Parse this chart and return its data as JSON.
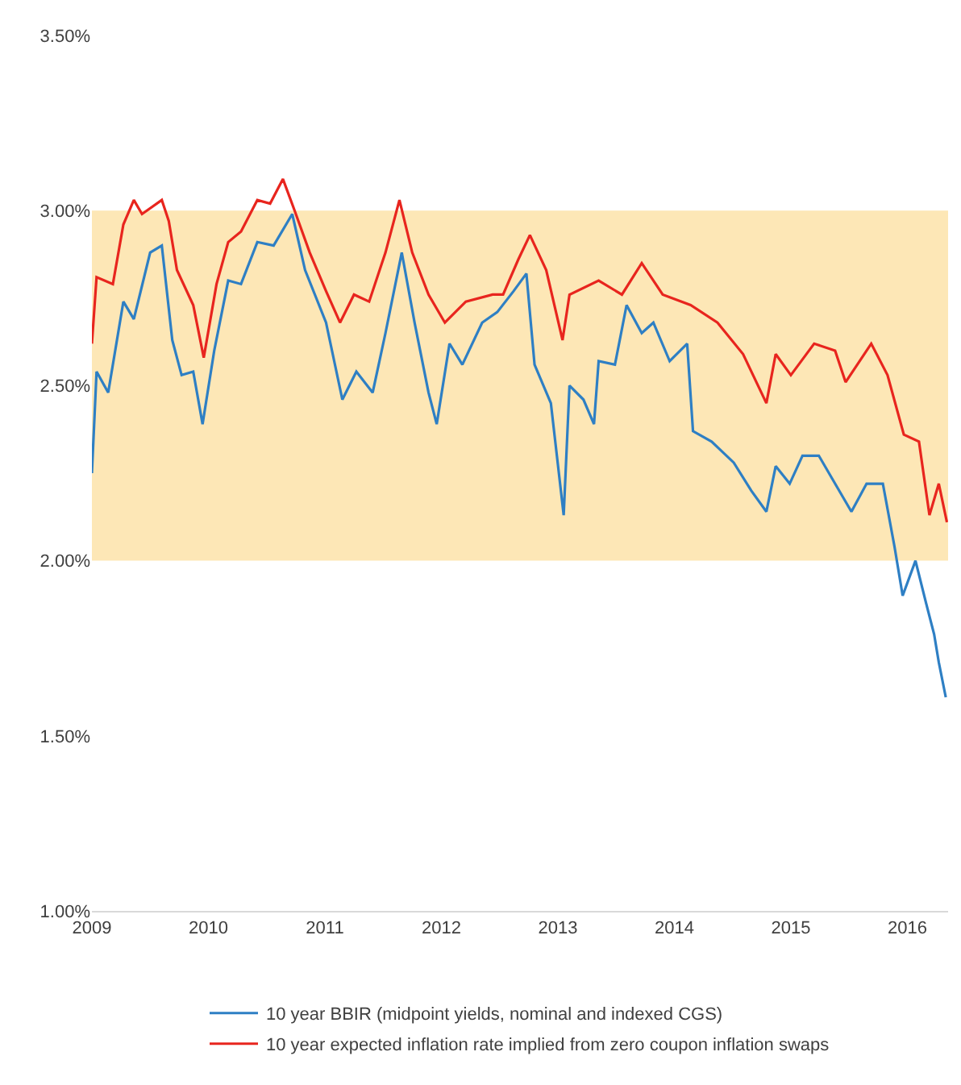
{
  "chart_data": {
    "type": "line",
    "xlim": [
      2009,
      2016.35
    ],
    "xticks": [
      2009,
      2010,
      2011,
      2012,
      2013,
      2014,
      2015,
      2016
    ],
    "ylim": [
      1.0,
      3.5
    ],
    "yticks": [
      {
        "value": 1.0,
        "label": "1.00%"
      },
      {
        "value": 1.5,
        "label": "1.50%"
      },
      {
        "value": 2.0,
        "label": "2.00%"
      },
      {
        "value": 2.5,
        "label": "2.50%"
      },
      {
        "value": 3.0,
        "label": "3.00%"
      },
      {
        "value": 3.5,
        "label": "3.50%"
      }
    ],
    "grid": false,
    "legend": "bottom",
    "marker": "none",
    "line_style": "solid",
    "bands": [
      {
        "axis": "y",
        "from": 2.0,
        "to": 3.0,
        "color": "#fde7b6"
      }
    ],
    "series": [
      {
        "name": "10 year BBIR (midpoint yields, nominal and indexed CGS)",
        "color": "#2e7fc4",
        "x": [
          2009.0,
          2009.04,
          2009.14,
          2009.27,
          2009.36,
          2009.5,
          2009.6,
          2009.69,
          2009.77,
          2009.87,
          2009.95,
          2010.05,
          2010.17,
          2010.28,
          2010.42,
          2010.56,
          2010.72,
          2010.83,
          2011.01,
          2011.15,
          2011.27,
          2011.41,
          2011.52,
          2011.66,
          2011.77,
          2011.89,
          2011.96,
          2012.07,
          2012.18,
          2012.35,
          2012.48,
          2012.62,
          2012.73,
          2012.8,
          2012.94,
          2013.05,
          2013.1,
          2013.22,
          2013.31,
          2013.35,
          2013.49,
          2013.59,
          2013.72,
          2013.82,
          2013.96,
          2014.11,
          2014.16,
          2014.32,
          2014.51,
          2014.66,
          2014.79,
          2014.87,
          2014.99,
          2015.1,
          2015.24,
          2015.38,
          2015.52,
          2015.65,
          2015.79,
          2015.89,
          2015.96,
          2016.07,
          2016.16,
          2016.23,
          2016.27,
          2016.33
        ],
        "values": [
          2.25,
          2.54,
          2.48,
          2.74,
          2.69,
          2.88,
          2.9,
          2.63,
          2.53,
          2.54,
          2.39,
          2.6,
          2.8,
          2.79,
          2.91,
          2.9,
          2.99,
          2.83,
          2.68,
          2.46,
          2.54,
          2.48,
          2.65,
          2.88,
          2.68,
          2.48,
          2.39,
          2.62,
          2.56,
          2.68,
          2.71,
          2.77,
          2.82,
          2.56,
          2.45,
          2.13,
          2.5,
          2.46,
          2.39,
          2.57,
          2.56,
          2.73,
          2.65,
          2.68,
          2.57,
          2.62,
          2.37,
          2.34,
          2.28,
          2.2,
          2.14,
          2.27,
          2.22,
          2.3,
          2.3,
          2.22,
          2.14,
          2.22,
          2.22,
          2.04,
          1.9,
          2.0,
          1.88,
          1.79,
          1.71,
          1.61
        ]
      },
      {
        "name": "10 year expected inflation rate implied from zero coupon inflation swaps",
        "color": "#e8251e",
        "x": [
          2009.0,
          2009.04,
          2009.18,
          2009.27,
          2009.36,
          2009.43,
          2009.6,
          2009.66,
          2009.73,
          2009.87,
          2009.96,
          2010.07,
          2010.17,
          2010.28,
          2010.42,
          2010.53,
          2010.64,
          2010.74,
          2010.87,
          2011.01,
          2011.13,
          2011.25,
          2011.38,
          2011.52,
          2011.64,
          2011.75,
          2011.89,
          2012.03,
          2012.21,
          2012.44,
          2012.53,
          2012.66,
          2012.76,
          2012.9,
          2013.04,
          2013.1,
          2013.35,
          2013.55,
          2013.72,
          2013.9,
          2014.14,
          2014.37,
          2014.59,
          2014.79,
          2014.87,
          2015.0,
          2015.2,
          2015.38,
          2015.47,
          2015.69,
          2015.83,
          2015.97,
          2016.1,
          2016.19,
          2016.27,
          2016.34
        ],
        "values": [
          2.62,
          2.81,
          2.79,
          2.96,
          3.03,
          2.99,
          3.03,
          2.97,
          2.83,
          2.73,
          2.58,
          2.79,
          2.91,
          2.94,
          3.03,
          3.02,
          3.09,
          3.0,
          2.88,
          2.77,
          2.68,
          2.76,
          2.74,
          2.88,
          3.03,
          2.88,
          2.76,
          2.68,
          2.74,
          2.76,
          2.76,
          2.86,
          2.93,
          2.83,
          2.63,
          2.76,
          2.8,
          2.76,
          2.85,
          2.76,
          2.73,
          2.68,
          2.59,
          2.45,
          2.59,
          2.53,
          2.62,
          2.6,
          2.51,
          2.62,
          2.53,
          2.36,
          2.34,
          2.13,
          2.22,
          2.11
        ]
      }
    ]
  }
}
